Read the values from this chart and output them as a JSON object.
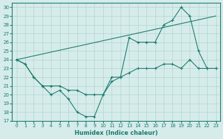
{
  "xlabel": "Humidex (Indice chaleur)",
  "background_color": "#d6ecea",
  "grid_color": "#b0d4d0",
  "line_color": "#1a7a6e",
  "xlim": [
    -0.5,
    23.5
  ],
  "ylim": [
    17,
    30.5
  ],
  "yticks": [
    17,
    18,
    19,
    20,
    21,
    22,
    23,
    24,
    25,
    26,
    27,
    28,
    29,
    30
  ],
  "xticks": [
    0,
    1,
    2,
    3,
    4,
    5,
    6,
    7,
    8,
    9,
    10,
    11,
    12,
    13,
    14,
    15,
    16,
    17,
    18,
    19,
    20,
    21,
    22,
    23
  ],
  "line1_x": [
    0,
    1,
    2,
    3,
    4,
    5,
    6,
    7,
    8,
    9,
    10,
    11,
    12,
    13,
    14,
    15,
    16,
    17,
    18,
    19,
    20,
    21,
    22,
    23
  ],
  "line1_y": [
    24,
    23.5,
    22,
    21,
    20,
    20.5,
    19.5,
    18,
    17.5,
    17.5,
    20,
    22,
    22,
    26.5,
    26,
    26,
    26,
    28,
    28.5,
    30,
    29,
    25,
    23,
    23
  ],
  "line2_x": [
    0,
    1,
    2,
    3,
    4,
    5,
    6,
    7,
    8,
    9,
    10,
    11,
    12,
    13,
    14,
    15,
    16,
    17,
    18,
    19,
    20,
    21,
    22,
    23
  ],
  "line2_y": [
    24,
    23.5,
    22,
    21,
    21,
    21,
    20.5,
    20.5,
    20,
    20,
    20,
    21.5,
    22,
    22.5,
    23,
    23,
    23,
    23.5,
    23.5,
    23,
    24,
    23,
    23,
    23
  ],
  "line3_x": [
    0,
    23
  ],
  "line3_y": [
    24,
    29
  ]
}
